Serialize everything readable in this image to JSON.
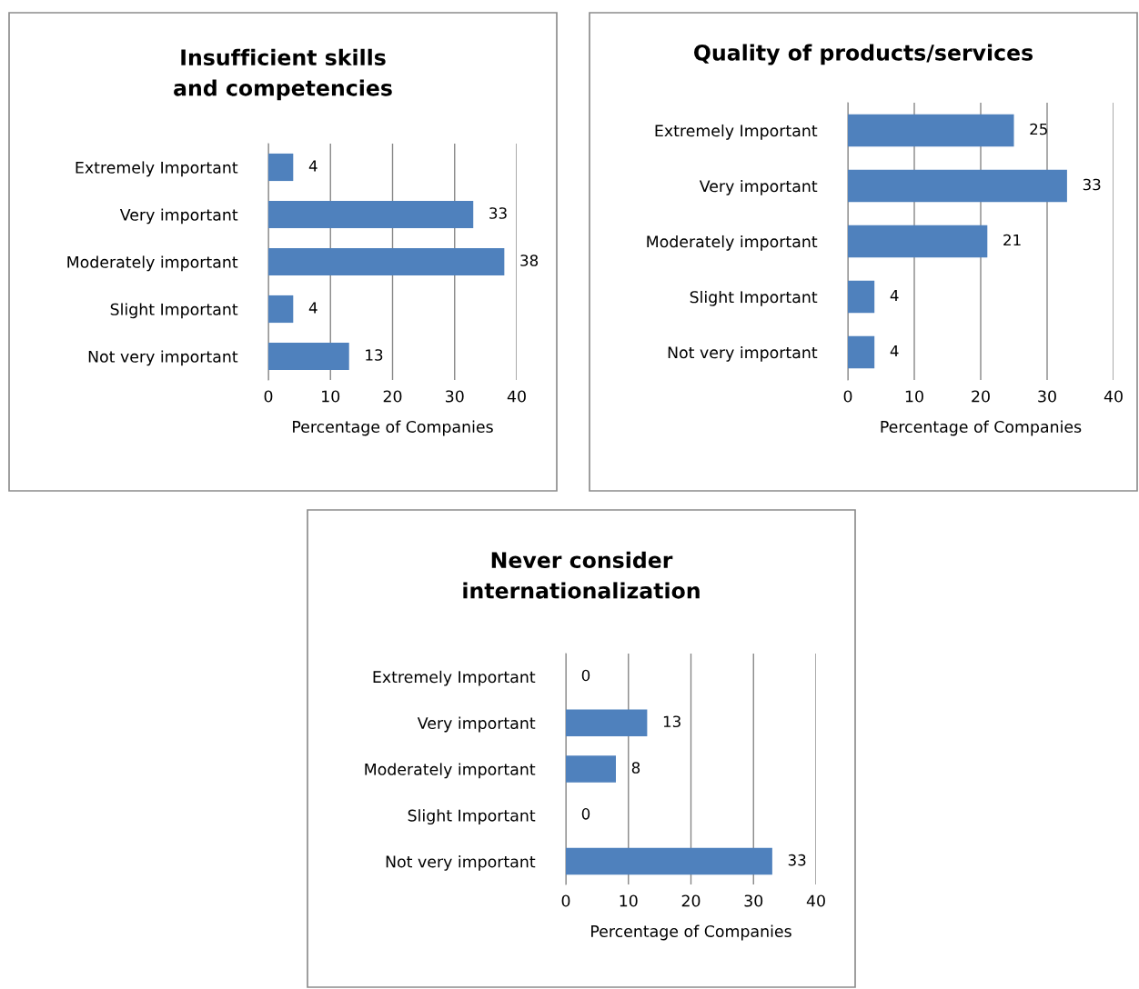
{
  "chart_data": [
    {
      "type": "bar",
      "orientation": "horizontal",
      "title": "Insufficient skills and competencies",
      "xlabel": "Percentage of Companies",
      "categories": [
        "Extremely Important",
        "Very important",
        "Moderately important",
        "Slight Important",
        "Not very important"
      ],
      "values": [
        4,
        33,
        38,
        4,
        13
      ],
      "color": "#4f81bd",
      "xlim": [
        0,
        40
      ],
      "xticks": [
        0,
        10,
        20,
        30,
        40
      ],
      "grid": "x",
      "data_labels": true
    },
    {
      "type": "bar",
      "orientation": "horizontal",
      "title": "Quality of products/services",
      "xlabel": "Percentage of Companies",
      "categories": [
        "Extremely Important",
        "Very important",
        "Moderately important",
        "Slight Important",
        "Not very important"
      ],
      "values": [
        25,
        33,
        21,
        4,
        4
      ],
      "color": "#4f81bd",
      "xlim": [
        0,
        40
      ],
      "xticks": [
        0,
        10,
        20,
        30,
        40
      ],
      "grid": "x",
      "data_labels": true
    },
    {
      "type": "bar",
      "orientation": "horizontal",
      "title": "Never consider internationalization",
      "xlabel": "Percentage of Companies",
      "categories": [
        "Extremely Important",
        "Very important",
        "Moderately important",
        "Slight Important",
        "Not very important"
      ],
      "values": [
        0,
        13,
        8,
        0,
        33
      ],
      "color": "#4f81bd",
      "xlim": [
        0,
        40
      ],
      "xticks": [
        0,
        10,
        20,
        30,
        40
      ],
      "grid": "x",
      "data_labels": true
    }
  ]
}
